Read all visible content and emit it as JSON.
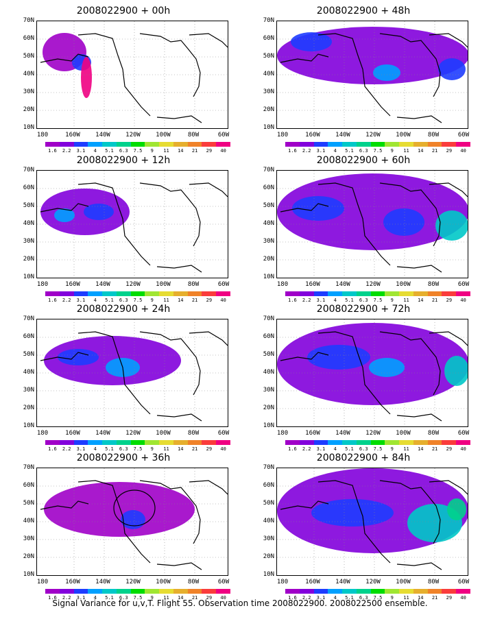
{
  "panels": [
    {
      "title": "2008022900 + 00h"
    },
    {
      "title": "2008022900 + 48h"
    },
    {
      "title": "2008022900 + 12h"
    },
    {
      "title": "2008022900 + 60h"
    },
    {
      "title": "2008022900 + 24h"
    },
    {
      "title": "2008022900 + 72h"
    },
    {
      "title": "2008022900 + 36h"
    },
    {
      "title": "2008022900 + 84h"
    }
  ],
  "lat_labels": [
    "70N",
    "60N",
    "50N",
    "40N",
    "30N",
    "20N",
    "10N"
  ],
  "lon_labels": [
    "180",
    "160W",
    "140W",
    "120W",
    "100W",
    "80W",
    "60W"
  ],
  "colorbar": {
    "levels": [
      "1.6",
      "2.2",
      "3.1",
      "4",
      "5.1",
      "6.3",
      "7.5",
      "9",
      "11",
      "14",
      "21",
      "29",
      "40"
    ],
    "colors": [
      "#a000c8",
      "#8200dc",
      "#1e3cff",
      "#00a0ff",
      "#00c8c8",
      "#00d28c",
      "#00dc00",
      "#a0e632",
      "#e6dc32",
      "#e6af2d",
      "#f08228",
      "#fa3c3c",
      "#f00082"
    ]
  },
  "caption": "Signal Variance for u,v,T. Flight 55. Observation time 2008022900. 2008022500 ensemble."
}
